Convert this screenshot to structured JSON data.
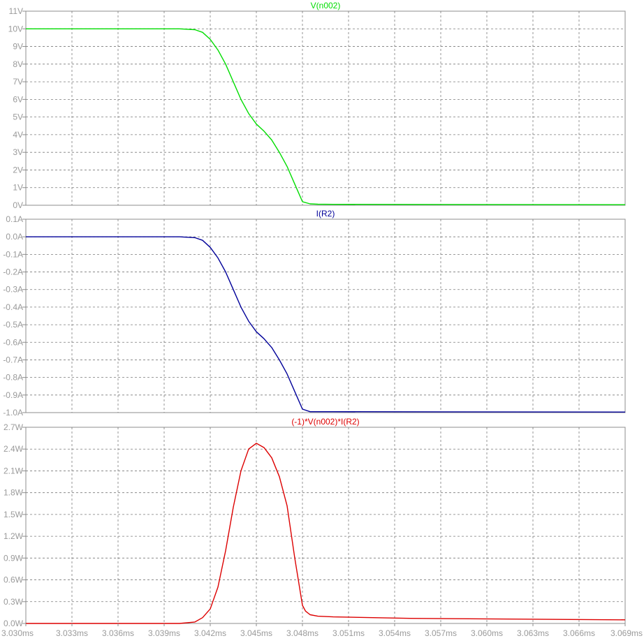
{
  "chart_data": [
    {
      "type": "line",
      "title": "V(n002)",
      "color": "#00dd00",
      "ylim": [
        0,
        11
      ],
      "y_ticks": [
        "0V",
        "1V",
        "2V",
        "3V",
        "4V",
        "5V",
        "6V",
        "7V",
        "8V",
        "9V",
        "10V",
        "11V"
      ],
      "series": [
        {
          "name": "V(n002)",
          "x": [
            3.03,
            3.039,
            3.04,
            3.041,
            3.0415,
            3.042,
            3.0425,
            3.043,
            3.0435,
            3.044,
            3.0445,
            3.045,
            3.0455,
            3.046,
            3.0465,
            3.047,
            3.0475,
            3.048,
            3.0485,
            3.049,
            3.05,
            3.069
          ],
          "y": [
            10,
            10,
            10,
            9.95,
            9.8,
            9.4,
            8.8,
            8.0,
            7.0,
            6.0,
            5.2,
            4.6,
            4.2,
            3.7,
            3.0,
            2.2,
            1.2,
            0.2,
            0.08,
            0.06,
            0.05,
            0.03
          ]
        }
      ]
    },
    {
      "type": "line",
      "title": "I(R2)",
      "color": "#000099",
      "ylim": [
        -1.0,
        0.1
      ],
      "y_ticks": [
        "-1.0A",
        "-0.9A",
        "-0.8A",
        "-0.7A",
        "-0.6A",
        "-0.5A",
        "-0.4A",
        "-0.3A",
        "-0.2A",
        "-0.1A",
        "0.0A",
        "0.1A"
      ],
      "series": [
        {
          "name": "I(R2)",
          "x": [
            3.03,
            3.039,
            3.04,
            3.041,
            3.0415,
            3.042,
            3.0425,
            3.043,
            3.0435,
            3.044,
            3.0445,
            3.045,
            3.0455,
            3.046,
            3.0465,
            3.047,
            3.0475,
            3.048,
            3.0485,
            3.049,
            3.05,
            3.069
          ],
          "y": [
            0,
            0,
            0,
            -0.005,
            -0.02,
            -0.06,
            -0.12,
            -0.2,
            -0.3,
            -0.4,
            -0.48,
            -0.54,
            -0.58,
            -0.63,
            -0.7,
            -0.78,
            -0.88,
            -0.98,
            -0.995,
            -0.995,
            -0.995,
            -0.997
          ]
        }
      ]
    },
    {
      "type": "line",
      "title": "(-1)*V(n002)*I(R2)",
      "color": "#dd0000",
      "ylim": [
        0,
        2.7
      ],
      "y_ticks": [
        "0.0W",
        "0.3W",
        "0.6W",
        "0.9W",
        "1.2W",
        "1.5W",
        "1.8W",
        "2.1W",
        "2.4W",
        "2.7W"
      ],
      "series": [
        {
          "name": "(-1)*V(n002)*I(R2)",
          "x": [
            3.03,
            3.039,
            3.04,
            3.041,
            3.0415,
            3.042,
            3.0425,
            3.043,
            3.0435,
            3.044,
            3.0445,
            3.045,
            3.0455,
            3.046,
            3.0465,
            3.047,
            3.0475,
            3.048,
            3.0482,
            3.0485,
            3.049,
            3.05,
            3.055,
            3.069
          ],
          "y": [
            0,
            0,
            0,
            0.02,
            0.08,
            0.2,
            0.5,
            1.0,
            1.6,
            2.1,
            2.4,
            2.48,
            2.42,
            2.28,
            2.02,
            1.62,
            0.9,
            0.25,
            0.17,
            0.12,
            0.1,
            0.09,
            0.07,
            0.05
          ]
        }
      ]
    }
  ],
  "x_axis": {
    "xlim": [
      3.03,
      3.069
    ],
    "tick_labels": [
      "3.030ms",
      "3.033ms",
      "3.036ms",
      "3.039ms",
      "3.042ms",
      "3.045ms",
      "3.048ms",
      "3.051ms",
      "3.054ms",
      "3.057ms",
      "3.060ms",
      "3.063ms",
      "3.066ms",
      "3.069ms"
    ]
  },
  "grid": true
}
